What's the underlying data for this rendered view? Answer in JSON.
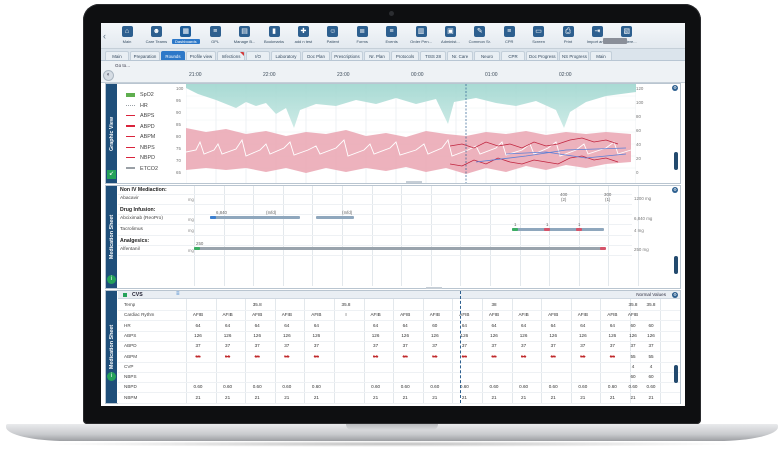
{
  "toolbar": {
    "items": [
      {
        "label": "Main",
        "icon": "home-icon",
        "glyph": "⌂"
      },
      {
        "label": "Care Teams",
        "icon": "team-icon",
        "glyph": "☻"
      },
      {
        "label": "Dashboards",
        "icon": "dashboard-icon",
        "glyph": "▦",
        "active": true
      },
      {
        "label": "GPL",
        "icon": "list-icon",
        "glyph": "≡"
      },
      {
        "label": "Manage B...",
        "icon": "manage-bed-icon",
        "glyph": "▤"
      },
      {
        "label": "Bookmarks",
        "icon": "bookmark-icon",
        "glyph": "▮"
      },
      {
        "label": "add n test",
        "icon": "add-test-icon",
        "glyph": "✚"
      },
      {
        "label": "Patient",
        "icon": "patient-icon",
        "glyph": "☺"
      },
      {
        "label": "Forms",
        "icon": "forms-icon",
        "glyph": "≣"
      },
      {
        "label": "Events",
        "icon": "events-icon",
        "glyph": "≡"
      },
      {
        "label": "Order Pen...",
        "icon": "order-pen-icon",
        "glyph": "▥"
      },
      {
        "label": "Administ...",
        "icon": "admin-icon",
        "glyph": "▣"
      },
      {
        "label": "Common Sr.",
        "icon": "common-icon",
        "glyph": "✎"
      },
      {
        "label": "CPR",
        "icon": "cpr-icon",
        "glyph": "≡"
      },
      {
        "label": "Screen",
        "icon": "screen-icon",
        "glyph": "▭"
      },
      {
        "label": "Print",
        "icon": "print-icon",
        "glyph": "⎙"
      },
      {
        "label": "Import ant...",
        "icon": "import-icon",
        "glyph": "⇥"
      },
      {
        "label": "Premiere...",
        "icon": "premiere-icon",
        "glyph": "▧"
      }
    ]
  },
  "tabs": [
    {
      "label": "Main"
    },
    {
      "label": "Preparation"
    },
    {
      "label": "Rounds",
      "active": true
    },
    {
      "label": "Profile view"
    },
    {
      "label": "Infections"
    },
    {
      "label": "I/O"
    },
    {
      "label": "Laboratory"
    },
    {
      "label": "Doc Plan"
    },
    {
      "label": "Prescriptions"
    },
    {
      "label": "Nr. Plan"
    },
    {
      "label": "Protocols"
    },
    {
      "label": "TISS 28"
    },
    {
      "label": "Nr. Care"
    },
    {
      "label": "Neuro"
    },
    {
      "label": "CPR"
    },
    {
      "label": "Doc Progress"
    },
    {
      "label": "NS Progress"
    },
    {
      "label": "Main"
    }
  ],
  "timebar": {
    "goto": "Go to...",
    "times": [
      "21:00",
      "22:00",
      "23:00",
      "00:00",
      "01:00",
      "02:00"
    ]
  },
  "graphic": {
    "title": "Graphic View",
    "legend": [
      {
        "label": "SpO2",
        "color": "#5fae4f",
        "kind": "block"
      },
      {
        "label": "HR",
        "color": "#9aa0a6",
        "kind": "wave"
      },
      {
        "label": "ABPS",
        "color": "#d9233b",
        "kind": "line"
      },
      {
        "label": "ABPD",
        "color": "#d9233b",
        "kind": "line"
      },
      {
        "label": "ABPM",
        "color": "#d9233b",
        "kind": "line"
      },
      {
        "label": "NBPS",
        "color": "#d9233b",
        "kind": "tri"
      },
      {
        "label": "NBPD",
        "color": "#d9233b",
        "kind": "tri"
      },
      {
        "label": "ETCO2",
        "color": "#9aa0a6",
        "kind": "line"
      }
    ],
    "left_scale": [
      "100",
      "95",
      "90",
      "85",
      "80",
      "75",
      "70",
      "65"
    ],
    "right_scale": [
      "120",
      "100",
      "80",
      "60",
      "40",
      "20",
      "0"
    ]
  },
  "medication": {
    "title": "Medication Sheet",
    "non_iv_header": "Non IV Mediaction:",
    "abacavir": {
      "name": "Abacavir",
      "unit": "mg",
      "dose1": "400",
      "dose1b": "(2)",
      "dose2": "300",
      "dose2b": "(1)",
      "rate": "1200 mg"
    },
    "infusion_header": "Drug Infusion:",
    "abciximab": {
      "name": "Abciximab (ReoPro)",
      "unit": "mg",
      "start": "6,840",
      "lbl1": "(Infd)",
      "lbl2": "(Infd)",
      "rate": "6,840 mg"
    },
    "tacrolimus": {
      "name": "Tacrolimus",
      "unit": "mg",
      "marks": [
        "1",
        "1",
        "1"
      ],
      "rate": "4 mg"
    },
    "analgesics_header": "Analgesics:",
    "alfentanil": {
      "name": "Alfentanil",
      "unit": "mg",
      "start": "250",
      "rate": "250 mg"
    }
  },
  "cvs": {
    "title": "CVS",
    "normal_values": "Normal Values",
    "right_header": [
      "35.8",
      "35.8"
    ],
    "rows": [
      {
        "label": "Temp",
        "cells": [
          "",
          "",
          "35.8",
          "",
          "",
          "35.8",
          "",
          "",
          "",
          "",
          "38",
          "",
          "",
          "",
          ""
        ],
        "right": [
          "35.8",
          "35.8"
        ]
      },
      {
        "label": "Cardiac Rythm",
        "cells": [
          "AFIB",
          "AFIB",
          "AFIB",
          "AFIB",
          "AFIB",
          "I",
          "AFIB",
          "AFIB",
          "AFIB",
          "AFIB",
          "AFIB",
          "AFIB",
          "AFIB",
          "AFIB",
          "AFIB"
        ],
        "right": [
          "AFIB",
          ""
        ]
      },
      {
        "label": "HR",
        "cells": [
          "64",
          "64",
          "64",
          "64",
          "64",
          "",
          "64",
          "64",
          "60",
          "64",
          "64",
          "64",
          "64",
          "64",
          "64"
        ],
        "right": [
          "60",
          "60"
        ]
      },
      {
        "label": "ABPS",
        "cells": [
          "126",
          "126",
          "126",
          "126",
          "126",
          "",
          "126",
          "126",
          "126",
          "126",
          "126",
          "126",
          "126",
          "126",
          "126"
        ],
        "right": [
          "126",
          "126"
        ]
      },
      {
        "label": "ABPD",
        "cells": [
          "37",
          "37",
          "37",
          "37",
          "37",
          "",
          "37",
          "37",
          "37",
          "37",
          "37",
          "37",
          "37",
          "37",
          "37"
        ],
        "right": [
          "37",
          "37"
        ]
      },
      {
        "label": "ABPM",
        "cells": [
          "55",
          "55",
          "55",
          "55",
          "55",
          "",
          "55",
          "55",
          "55",
          "55",
          "55",
          "55",
          "55",
          "55",
          "55"
        ],
        "red": true,
        "right": [
          "55",
          "55"
        ]
      },
      {
        "label": "CVP",
        "cells": [
          "",
          "",
          "",
          "",
          "",
          "",
          "",
          "",
          "",
          "",
          "",
          "",
          "",
          "",
          ""
        ],
        "right": [
          "4",
          "4"
        ]
      },
      {
        "label": "NBPS",
        "cells": [
          "",
          "",
          "",
          "",
          "",
          "",
          "",
          "",
          "",
          "",
          "",
          "",
          "",
          "",
          ""
        ],
        "right": [
          "60",
          "60"
        ]
      },
      {
        "label": "NBPD",
        "cells": [
          "0.60",
          "0.60",
          "0.60",
          "0.60",
          "0.60",
          "",
          "0.60",
          "0.60",
          "0.60",
          "0.60",
          "0.60",
          "0.60",
          "0.60",
          "0.60",
          "0.60"
        ],
        "right": [
          "0.60",
          "0.60"
        ]
      },
      {
        "label": "NBPM",
        "cells": [
          "21",
          "21",
          "21",
          "21",
          "21",
          "",
          "21",
          "21",
          "21",
          "21",
          "21",
          "21",
          "21",
          "21",
          "21"
        ],
        "right": [
          "21",
          "21"
        ]
      }
    ]
  }
}
